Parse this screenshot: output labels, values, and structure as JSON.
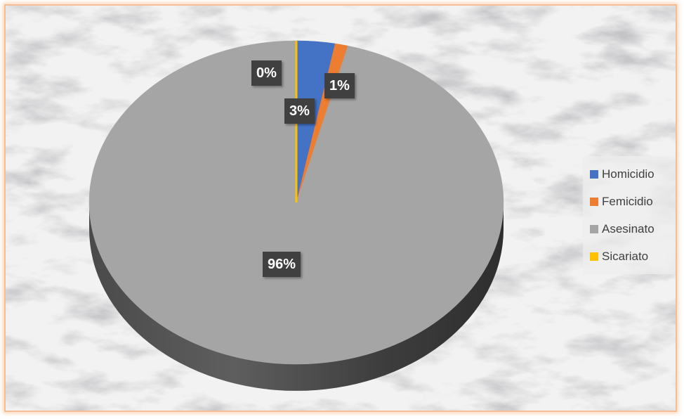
{
  "chart_data": {
    "type": "pie",
    "categories": [
      "Homicidio",
      "Femicidio",
      "Asesinato",
      "Sicariato"
    ],
    "values": [
      3,
      1,
      96,
      0
    ],
    "labels": [
      "3%",
      "1%",
      "96%",
      "0%"
    ],
    "colors": [
      "#4472c4",
      "#ed7d31",
      "#a5a5a5",
      "#ffc000"
    ],
    "legend_position": "right",
    "style": "3d"
  }
}
